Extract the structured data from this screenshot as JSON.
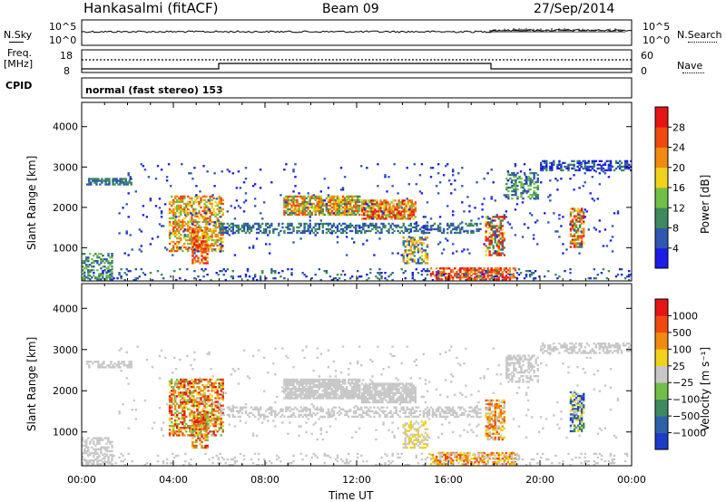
{
  "header": {
    "station": "Hankasalmi (fitACF)",
    "beam": "Beam 09",
    "date": "27/Sep/2014"
  },
  "panels": {
    "nsky_label": "N.Sky",
    "nsearch_label": "N.Search",
    "freq_label_line1": "Freq.",
    "freq_label_line2": "[MHz]",
    "nave_label": "Nave",
    "cpid_label": "CPID",
    "cpid_value": "normal (fast stereo) 153",
    "top_left_ticks": [
      "10^5",
      "10^0"
    ],
    "top_right_ticks": [
      "10^5",
      "10^0"
    ],
    "freq_ticks": [
      "18",
      "8"
    ],
    "nave_ticks": [
      "60",
      "0"
    ]
  },
  "chart_data": [
    {
      "type": "heatmap",
      "name": "power",
      "ylabel": "Slant Range [km]",
      "xlabel": "",
      "ylim": [
        180,
        4600
      ],
      "yticks": [
        1000,
        2000,
        3000,
        4000
      ],
      "colorbar_label": "Power [dB]",
      "colorbar_ticks": [
        "4",
        "8",
        "12",
        "16",
        "20",
        "24",
        "28"
      ],
      "colors": [
        "#1c1ce6",
        "#2f56b0",
        "#3d8a5e",
        "#70bf46",
        "#f0d21a",
        "#f08a10",
        "#f04a10",
        "#e61414"
      ]
    },
    {
      "type": "heatmap",
      "name": "velocity",
      "ylabel": "Slant Range [km]",
      "xlabel": "Time UT",
      "ylim": [
        180,
        4600
      ],
      "yticks": [
        1000,
        2000,
        3000,
        4000
      ],
      "xticks": [
        "00:00",
        "04:00",
        "08:00",
        "12:00",
        "16:00",
        "20:00",
        "00:00"
      ],
      "colorbar_label": "Velocity [m s⁻¹]",
      "colorbar_ticks": [
        "1000",
        "500",
        "100",
        "25",
        "−25",
        "−100",
        "−500",
        "−1000"
      ],
      "colors": [
        "#1c3cc8",
        "#2e62a8",
        "#3d8a5e",
        "#70bf46",
        "#c8c8c8",
        "#f0d21a",
        "#f08a10",
        "#f04a10",
        "#e61414"
      ]
    }
  ]
}
